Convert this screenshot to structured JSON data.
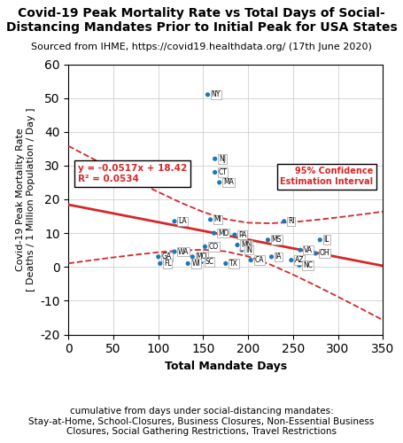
{
  "chart_data": {
    "type": "scatter",
    "title": "Covid-19 Peak Mortality Rate vs Total Days of Social-\nDistancing Mandates Prior to Initial Peak for USA States",
    "subtitle": "Sourced from IHME, https://covid19.healthdata.org/ (17th June 2020)",
    "x_label": "Total Mandate Days",
    "caption": "cumulative from days under social-distancing mandates:\nStay-at-Home, School-Closures, Business Closures, Non-Essential Business\nClosures, Social Gathering Restrictions, Travel Restrictions",
    "y_label": "Covid-19 Peak Mortality Rate\n[ Deaths / 1 Million Population / Day ]",
    "xlim": [
      0,
      350
    ],
    "ylim": [
      -20,
      60
    ],
    "xticks": [
      0,
      50,
      100,
      150,
      200,
      250,
      300,
      350
    ],
    "yticks": [
      -20,
      -10,
      0,
      10,
      20,
      30,
      40,
      50,
      60
    ],
    "grid": true,
    "series": [
      {
        "type": "line",
        "color": "#d62728",
        "line_style": "solid",
        "x": [
          0,
          350
        ],
        "values": [
          18.42,
          0.325
        ]
      },
      {
        "type": "line",
        "color": "#d62728",
        "line_style": "dashed",
        "x": [
          0,
          25,
          50,
          75,
          100,
          125,
          150,
          175,
          200,
          225,
          250,
          275,
          300,
          325,
          350
        ],
        "values": [
          35.79,
          32.3,
          28.86,
          25.46,
          22.16,
          19.03,
          16.25,
          14.15,
          13.07,
          12.91,
          13.27,
          13.9,
          14.66,
          15.49,
          16.37
        ]
      },
      {
        "type": "line",
        "color": "#d62728",
        "line_style": "dashed",
        "x": [
          0,
          25,
          50,
          75,
          100,
          125,
          150,
          175,
          200,
          225,
          250,
          275,
          300,
          325,
          350
        ],
        "values": [
          1.06,
          1.95,
          2.82,
          3.62,
          4.34,
          4.88,
          5.08,
          4.6,
          3.09,
          0.67,
          -2.28,
          -5.49,
          -8.84,
          -12.26,
          -15.72
        ]
      },
      {
        "type": "scatter",
        "color": "#1f77b4",
        "labels": [
          "NY",
          "NJ",
          "CT",
          "MA",
          "LA",
          "MI",
          "MD",
          "PA",
          "MN",
          "IN",
          "CA",
          "MS",
          "RI",
          "VA",
          "IL",
          "OH",
          "AZ",
          "IA",
          "NC",
          "CO",
          "MO",
          "WA",
          "GA",
          "FL",
          "WI",
          "SC",
          "TX"
        ],
        "x": [
          155,
          163,
          163,
          168,
          118,
          158,
          162,
          185,
          188,
          193,
          203,
          222,
          240,
          258,
          280,
          275,
          248,
          226,
          257,
          152,
          138,
          118,
          100,
          102,
          133,
          148,
          175
        ],
        "values": [
          51,
          32,
          28,
          25,
          13.5,
          14,
          10,
          9.5,
          6.5,
          5,
          2,
          8,
          13.5,
          5,
          8,
          4,
          2,
          3,
          0.5,
          6,
          3,
          4.5,
          3,
          1,
          1,
          1.5,
          1
        ]
      }
    ],
    "annotations": [
      "y = -0.0517x + 18.42\nR² = 0.0534",
      "95% Confidence\nEstimation Interval"
    ]
  }
}
